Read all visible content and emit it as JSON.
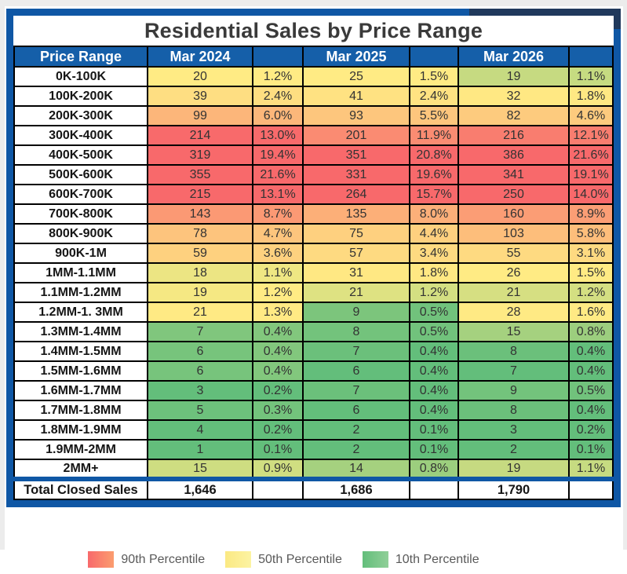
{
  "title": "Residential Sales by Price Range",
  "colors": {
    "frame_blue": "#0F57A5",
    "frame_dark_accent": "#20395C",
    "header_bg": "#155FA9",
    "header_text": "#FFFFFF",
    "title_text": "#3A3A3A",
    "grid_black": "#000000",
    "legend_text": "#595959"
  },
  "chart_data": {
    "type": "table",
    "title": "Residential Sales by Price Range",
    "row_header": "Price Range",
    "categories": [
      "0K-100K",
      "100K-200K",
      "200K-300K",
      "300K-400K",
      "400K-500K",
      "500K-600K",
      "600K-700K",
      "700K-800K",
      "800K-900K",
      "900K-1M",
      "1MM-1.1MM",
      "1.1MM-1.2MM",
      "1.2MM-1. 3MM",
      "1.3MM-1.4MM",
      "1.4MM-1.5MM",
      "1.5MM-1.6MM",
      "1.6MM-1.7MM",
      "1.7MM-1.8MM",
      "1.8MM-1.9MM",
      "1.9MM-2MM",
      "2MM+"
    ],
    "series": [
      {
        "name": "Mar 2024",
        "counts": [
          20,
          39,
          99,
          214,
          319,
          355,
          215,
          143,
          78,
          59,
          18,
          19,
          21,
          7,
          6,
          6,
          3,
          5,
          4,
          1,
          15
        ],
        "pcts": [
          1.2,
          2.4,
          6.0,
          13.0,
          19.4,
          21.6,
          13.1,
          8.7,
          4.7,
          3.6,
          1.1,
          1.2,
          1.3,
          0.4,
          0.4,
          0.4,
          0.2,
          0.3,
          0.2,
          0.1,
          0.9
        ]
      },
      {
        "name": "Mar 2025",
        "counts": [
          25,
          41,
          93,
          201,
          351,
          331,
          264,
          135,
          75,
          57,
          31,
          21,
          9,
          8,
          7,
          6,
          7,
          6,
          2,
          2,
          14
        ],
        "pcts": [
          1.5,
          2.4,
          5.5,
          11.9,
          20.8,
          19.6,
          15.7,
          8.0,
          4.4,
          3.4,
          1.8,
          1.2,
          0.5,
          0.5,
          0.4,
          0.4,
          0.4,
          0.4,
          0.1,
          0.1,
          0.8
        ]
      },
      {
        "name": "Mar 2026",
        "counts": [
          19,
          32,
          82,
          216,
          386,
          341,
          250,
          160,
          103,
          55,
          26,
          21,
          28,
          15,
          8,
          7,
          9,
          8,
          3,
          2,
          19
        ],
        "pcts": [
          1.1,
          1.8,
          4.6,
          12.1,
          21.6,
          19.1,
          14.0,
          8.9,
          5.8,
          3.1,
          1.5,
          1.2,
          1.6,
          0.8,
          0.4,
          0.4,
          0.5,
          0.4,
          0.2,
          0.1,
          1.1
        ]
      }
    ],
    "total_row": {
      "label": "Total Closed Sales",
      "values": [
        "1,646",
        "1,686",
        "1,790"
      ]
    },
    "color_scale": {
      "description": "3-color scale anchored at 10th/50th/90th percentile of each column",
      "min_anchor": "10th percentile",
      "mid_anchor": "50th percentile",
      "max_anchor": "90th percentile",
      "min_color": "#63BE7B",
      "mid_color": "#FFEB84",
      "max_color": "#F8696B"
    }
  },
  "legend": {
    "items": [
      {
        "label": "90th Percentile",
        "from": "#F8696B",
        "to": "#FB9D6F"
      },
      {
        "label": "50th Percentile",
        "from": "#FBE983",
        "to": "#FCF3A2"
      },
      {
        "label": "10th Percentile",
        "from": "#63BE7B",
        "to": "#90CF98"
      }
    ]
  }
}
